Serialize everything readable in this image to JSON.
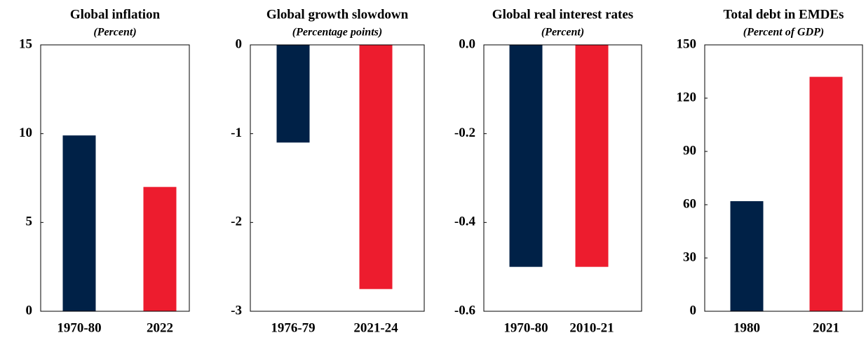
{
  "chart_data": [
    {
      "type": "bar",
      "title": "Global inflation",
      "subtitle": "(Percent)",
      "categories": [
        "1970-80",
        "2022"
      ],
      "values": [
        9.9,
        7.0
      ],
      "colors": [
        "#002147",
        "#ed1c2e"
      ],
      "ylim": [
        0,
        15
      ],
      "yticks": [
        0,
        5,
        10,
        15
      ]
    },
    {
      "type": "bar",
      "title": "Global growth slowdown",
      "subtitle": "(Percentage points)",
      "categories": [
        "1976-79",
        "2021-24"
      ],
      "values": [
        -1.1,
        -2.75
      ],
      "colors": [
        "#002147",
        "#ed1c2e"
      ],
      "ylim": [
        -3,
        0
      ],
      "yticks": [
        0,
        -1,
        -2,
        -3
      ]
    },
    {
      "type": "bar",
      "title": "Global real interest rates",
      "subtitle": "(Percent)",
      "categories": [
        "1970-80",
        "2010-21"
      ],
      "values": [
        -0.5,
        -0.5
      ],
      "colors": [
        "#002147",
        "#ed1c2e"
      ],
      "ylim": [
        -0.6,
        0
      ],
      "yticks": [
        {
          "value": 0,
          "label": "0.0"
        },
        -0.2,
        -0.4,
        -0.6
      ]
    },
    {
      "type": "bar",
      "title": "Total debt in EMDEs",
      "subtitle": "(Percent of GDP)",
      "categories": [
        "1980",
        "2021"
      ],
      "values": [
        62,
        132
      ],
      "colors": [
        "#002147",
        "#ed1c2e"
      ],
      "ylim": [
        0,
        150
      ],
      "yticks": [
        0,
        30,
        60,
        90,
        120,
        150
      ]
    }
  ]
}
